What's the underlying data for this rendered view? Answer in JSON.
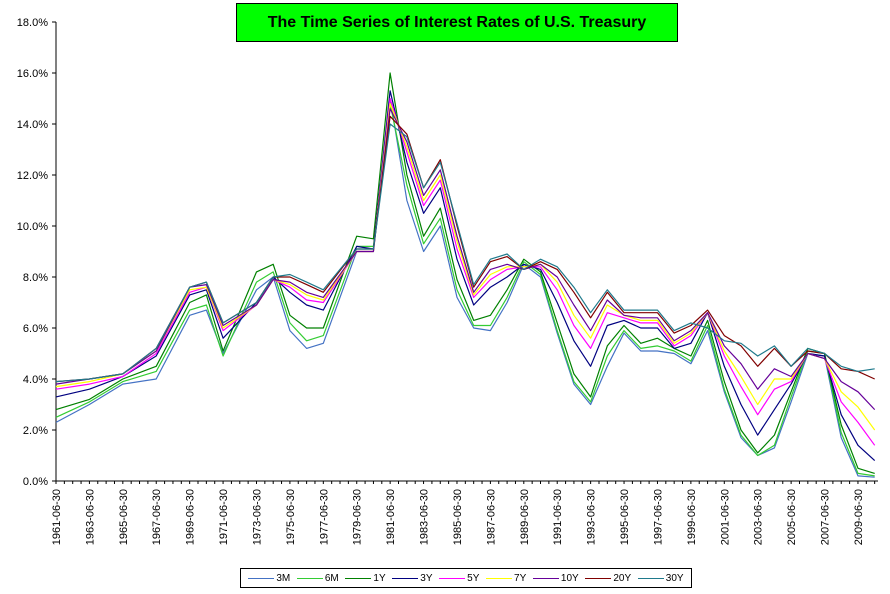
{
  "chart_data": {
    "type": "line",
    "title": "The Time Series of Interest Rates of U.S. Treasury",
    "xlabel": "",
    "ylabel": "",
    "ylim": [
      0,
      18
    ],
    "y_ticks": [
      "0.0%",
      "2.0%",
      "4.0%",
      "6.0%",
      "8.0%",
      "10.0%",
      "12.0%",
      "14.0%",
      "16.0%",
      "18.0%"
    ],
    "x_ticks": [
      "1961-06-30",
      "1963-06-30",
      "1965-06-30",
      "1967-06-30",
      "1969-06-30",
      "1971-06-30",
      "1973-06-30",
      "1975-06-30",
      "1977-06-30",
      "1979-06-30",
      "1981-06-30",
      "1983-06-30",
      "1985-06-30",
      "1987-06-30",
      "1989-06-30",
      "1991-06-30",
      "1993-06-30",
      "1995-06-30",
      "1997-06-30",
      "1999-06-30",
      "2001-06-30",
      "2003-06-30",
      "2005-06-30",
      "2007-06-30",
      "2009-06-30"
    ],
    "x_start_year": 1961.5,
    "x_end_year": 2010.7,
    "grid": false,
    "legend_position": "bottom",
    "x": [
      1961.5,
      1963.5,
      1965.5,
      1967.5,
      1969.5,
      1970.5,
      1971.5,
      1973.5,
      1974.5,
      1975.5,
      1976.5,
      1977.5,
      1979.5,
      1980.5,
      1981.5,
      1982.5,
      1983.5,
      1984.5,
      1985.5,
      1986.5,
      1987.5,
      1988.5,
      1989.5,
      1990.5,
      1991.5,
      1992.5,
      1993.5,
      1994.5,
      1995.5,
      1996.5,
      1997.5,
      1998.5,
      1999.5,
      2000.5,
      2001.5,
      2002.5,
      2003.5,
      2004.5,
      2005.5,
      2006.5,
      2007.5,
      2008.5,
      2009.5,
      2010.5
    ],
    "series": [
      {
        "name": "3M",
        "color": "#4472c4",
        "values": [
          2.3,
          3.0,
          3.8,
          4.0,
          6.5,
          6.7,
          5.0,
          7.5,
          8.0,
          5.9,
          5.2,
          5.4,
          9.0,
          9.0,
          15.0,
          11.0,
          9.0,
          10.0,
          7.2,
          6.0,
          5.9,
          7.0,
          8.5,
          8.0,
          5.8,
          3.8,
          3.0,
          4.5,
          5.8,
          5.1,
          5.1,
          5.0,
          4.6,
          5.9,
          3.5,
          1.7,
          1.0,
          1.3,
          3.1,
          5.0,
          4.9,
          1.7,
          0.2,
          0.15
        ]
      },
      {
        "name": "6M",
        "color": "#33cc33",
        "values": [
          2.5,
          3.1,
          3.9,
          4.3,
          6.7,
          6.9,
          4.9,
          7.8,
          8.2,
          6.2,
          5.5,
          5.7,
          9.2,
          9.2,
          14.8,
          11.6,
          9.3,
          10.3,
          7.5,
          6.1,
          6.1,
          7.2,
          8.6,
          8.1,
          5.9,
          3.9,
          3.1,
          4.9,
          5.9,
          5.2,
          5.3,
          5.1,
          4.7,
          6.1,
          3.6,
          1.8,
          1.0,
          1.4,
          3.3,
          5.1,
          5.0,
          1.9,
          0.3,
          0.2
        ]
      },
      {
        "name": "1Y",
        "color": "#008000",
        "values": [
          2.8,
          3.2,
          4.0,
          4.5,
          7.0,
          7.3,
          5.1,
          8.2,
          8.5,
          6.5,
          6.0,
          6.0,
          9.6,
          9.5,
          16.0,
          12.0,
          9.6,
          10.7,
          7.9,
          6.3,
          6.5,
          7.5,
          8.7,
          8.2,
          6.2,
          4.2,
          3.3,
          5.3,
          6.1,
          5.4,
          5.6,
          5.2,
          4.9,
          6.3,
          3.9,
          2.0,
          1.1,
          1.8,
          3.5,
          5.2,
          5.0,
          2.2,
          0.5,
          0.3
        ]
      },
      {
        "name": "3Y",
        "color": "#000080",
        "values": [
          3.3,
          3.6,
          4.1,
          4.9,
          7.3,
          7.5,
          5.6,
          7.0,
          8.0,
          7.4,
          6.9,
          6.7,
          9.2,
          9.1,
          15.3,
          12.5,
          10.5,
          11.5,
          8.7,
          6.9,
          7.6,
          8.0,
          8.5,
          8.3,
          7.0,
          5.5,
          4.5,
          6.1,
          6.3,
          6.0,
          6.0,
          5.2,
          5.4,
          6.6,
          4.5,
          3.0,
          1.8,
          2.8,
          3.8,
          5.0,
          4.9,
          2.6,
          1.4,
          0.8
        ]
      },
      {
        "name": "5Y",
        "color": "#ff00ff",
        "values": [
          3.6,
          3.8,
          4.1,
          5.0,
          7.4,
          7.6,
          5.9,
          6.9,
          7.9,
          7.6,
          7.1,
          7.0,
          9.0,
          9.0,
          15.0,
          12.9,
          10.8,
          11.8,
          9.1,
          7.2,
          7.9,
          8.3,
          8.4,
          8.4,
          7.5,
          6.1,
          5.2,
          6.6,
          6.4,
          6.2,
          6.2,
          5.3,
          5.7,
          6.6,
          4.9,
          3.7,
          2.6,
          3.6,
          3.9,
          5.0,
          4.8,
          3.1,
          2.3,
          1.4
        ]
      },
      {
        "name": "7Y",
        "color": "#ffff00",
        "values": [
          3.7,
          3.9,
          4.2,
          5.1,
          7.5,
          7.6,
          6.0,
          6.9,
          7.9,
          7.7,
          7.3,
          7.1,
          9.0,
          9.0,
          14.8,
          13.1,
          11.0,
          12.0,
          9.4,
          7.3,
          8.1,
          8.4,
          8.4,
          8.5,
          7.8,
          6.5,
          5.6,
          6.9,
          6.5,
          6.3,
          6.3,
          5.4,
          5.8,
          6.6,
          5.1,
          4.1,
          3.0,
          4.0,
          4.0,
          5.0,
          4.8,
          3.5,
          2.9,
          2.0
        ]
      },
      {
        "name": "10Y",
        "color": "#660099",
        "values": [
          3.8,
          4.0,
          4.2,
          5.1,
          7.6,
          7.7,
          6.1,
          6.9,
          7.9,
          7.8,
          7.4,
          7.2,
          9.0,
          9.0,
          14.6,
          13.3,
          11.2,
          12.2,
          9.6,
          7.4,
          8.3,
          8.5,
          8.3,
          8.5,
          8.0,
          6.9,
          5.9,
          7.1,
          6.5,
          6.4,
          6.4,
          5.5,
          5.9,
          6.6,
          5.3,
          4.6,
          3.6,
          4.4,
          4.1,
          5.0,
          4.8,
          3.9,
          3.5,
          2.8
        ]
      },
      {
        "name": "20Y",
        "color": "#800000",
        "values": [
          3.9,
          4.0,
          4.2,
          5.2,
          7.6,
          7.8,
          6.2,
          7.0,
          8.0,
          8.0,
          7.7,
          7.4,
          9.1,
          9.1,
          14.3,
          13.6,
          11.5,
          12.6,
          10.0,
          7.6,
          8.6,
          8.8,
          8.3,
          8.6,
          8.3,
          7.4,
          6.4,
          7.4,
          6.6,
          6.6,
          6.6,
          5.8,
          6.1,
          6.7,
          5.7,
          5.3,
          4.5,
          5.2,
          4.5,
          5.1,
          5.0,
          4.4,
          4.3,
          4.0
        ]
      },
      {
        "name": "30Y",
        "color": "#1f7a8c",
        "values": [
          3.9,
          4.0,
          4.2,
          5.2,
          7.6,
          7.8,
          6.2,
          7.0,
          8.0,
          8.1,
          7.8,
          7.5,
          9.1,
          9.1,
          14.0,
          13.5,
          11.5,
          12.5,
          10.1,
          7.7,
          8.7,
          8.9,
          8.3,
          8.7,
          8.4,
          7.6,
          6.6,
          7.5,
          6.7,
          6.7,
          6.7,
          5.9,
          6.2,
          6.0,
          5.5,
          5.4,
          4.9,
          5.3,
          4.5,
          5.2,
          5.0,
          4.5,
          4.3,
          4.4
        ]
      }
    ]
  }
}
